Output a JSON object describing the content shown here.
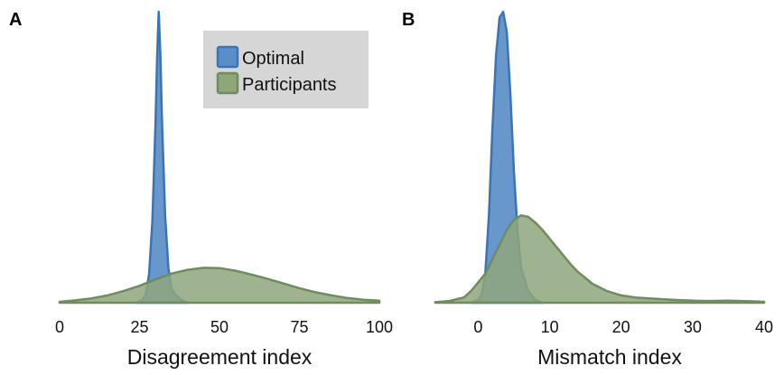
{
  "colors": {
    "optimal_fill": "#5b8ec8",
    "optimal_stroke": "#3b74b4",
    "participants_fill": "#8fa67c",
    "participants_stroke": "#6e8c5e",
    "legend_bg": "#d6d6d6",
    "baseline": "#6e8c5e"
  },
  "legend": {
    "items": [
      {
        "label": "Optimal",
        "series": "optimal"
      },
      {
        "label": "Participants",
        "series": "participants"
      }
    ],
    "placement": "top, panel A"
  },
  "chart_data": [
    {
      "type": "area",
      "panel_label": "A",
      "xlabel": "Disagreement index",
      "ylabel": "",
      "xlim": [
        0,
        100
      ],
      "ylim": [
        0,
        1.0
      ],
      "xticks": [
        0,
        25,
        50,
        75,
        100
      ],
      "grid": false,
      "series": [
        {
          "name": "Optimal",
          "key": "optimal",
          "x": [
            24,
            26,
            27,
            28,
            29,
            30,
            30.5,
            31,
            31.5,
            32,
            33,
            34,
            35,
            36,
            37,
            38,
            40
          ],
          "y": [
            0.0,
            0.01,
            0.03,
            0.1,
            0.28,
            0.62,
            0.85,
            1.0,
            0.86,
            0.63,
            0.3,
            0.12,
            0.05,
            0.03,
            0.02,
            0.01,
            0.0
          ]
        },
        {
          "name": "Participants",
          "key": "participants",
          "x": [
            0,
            5,
            10,
            15,
            20,
            25,
            30,
            35,
            40,
            45,
            50,
            55,
            60,
            65,
            70,
            75,
            80,
            85,
            90,
            95,
            100
          ],
          "y": [
            0.003,
            0.008,
            0.015,
            0.025,
            0.04,
            0.058,
            0.08,
            0.1,
            0.113,
            0.12,
            0.119,
            0.11,
            0.097,
            0.082,
            0.066,
            0.05,
            0.036,
            0.025,
            0.016,
            0.01,
            0.007
          ]
        }
      ]
    },
    {
      "type": "area",
      "panel_label": "B",
      "xlabel": "Mismatch index",
      "ylabel": "",
      "xlim": [
        -7,
        40
      ],
      "ylim": [
        0,
        1.0
      ],
      "xticks": [
        0,
        10,
        20,
        30,
        40
      ],
      "grid": false,
      "series": [
        {
          "name": "Optimal",
          "key": "optimal",
          "x": [
            -1,
            0,
            0.5,
            1,
            1.5,
            2,
            2.5,
            3,
            3.5,
            4,
            4.5,
            5,
            5.5,
            6,
            7,
            8,
            9
          ],
          "y": [
            0.0,
            0.01,
            0.03,
            0.1,
            0.3,
            0.6,
            0.85,
            0.98,
            1.0,
            0.93,
            0.72,
            0.45,
            0.25,
            0.12,
            0.04,
            0.01,
            0.0
          ]
        },
        {
          "name": "Participants",
          "key": "participants",
          "x": [
            -6,
            -4,
            -2,
            -1,
            0,
            1,
            2,
            3,
            4,
            5,
            6,
            7,
            8,
            9,
            10,
            11,
            12,
            13,
            14,
            15,
            16,
            18,
            20,
            22,
            25,
            28,
            30,
            32,
            35,
            38,
            40
          ],
          "y": [
            0.002,
            0.006,
            0.018,
            0.04,
            0.07,
            0.1,
            0.15,
            0.2,
            0.25,
            0.285,
            0.3,
            0.295,
            0.275,
            0.25,
            0.22,
            0.19,
            0.16,
            0.13,
            0.105,
            0.085,
            0.065,
            0.04,
            0.025,
            0.018,
            0.013,
            0.009,
            0.007,
            0.006,
            0.007,
            0.005,
            0.003
          ]
        }
      ]
    }
  ]
}
